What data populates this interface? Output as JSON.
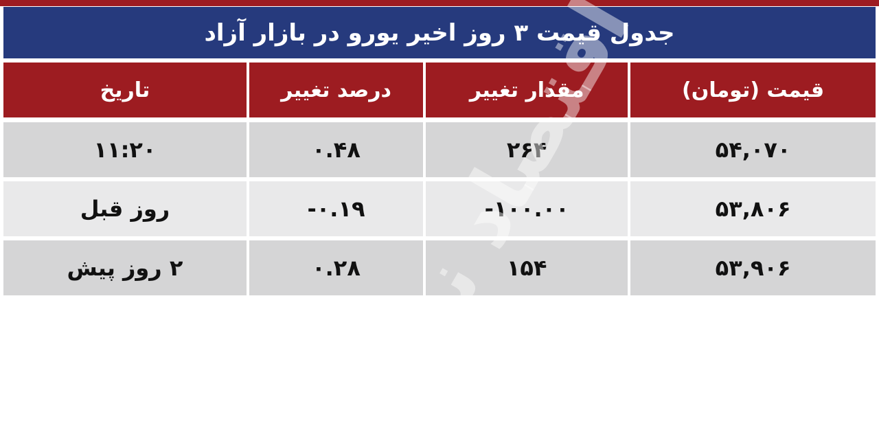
{
  "title": "جدول قیمت ۳ روز اخیر یورو در بازار آزاد",
  "colors": {
    "header_red": "#9d1c21",
    "title_blue": "#263a7d",
    "row_dark": "#d5d5d6",
    "row_light": "#e9e9ea"
  },
  "watermark": "اقتصاد نیوز",
  "columns": [
    "قیمت (تومان)",
    "مقدار تغییر",
    "درصد تغییر",
    "تاریخ"
  ],
  "rows": [
    {
      "price": "۵۴,۰۷۰",
      "change": "۲۶۴",
      "percent": "۰.۴۸",
      "date": "۱۱:۲۰"
    },
    {
      "price": "۵۳,۸۰۶",
      "change": "-۱۰۰.۰۰",
      "percent": "-۰.۱۹",
      "date": "روز قبل"
    },
    {
      "price": "۵۳,۹۰۶",
      "change": "۱۵۴",
      "percent": "۰.۲۸",
      "date": "۲ روز پیش"
    }
  ]
}
